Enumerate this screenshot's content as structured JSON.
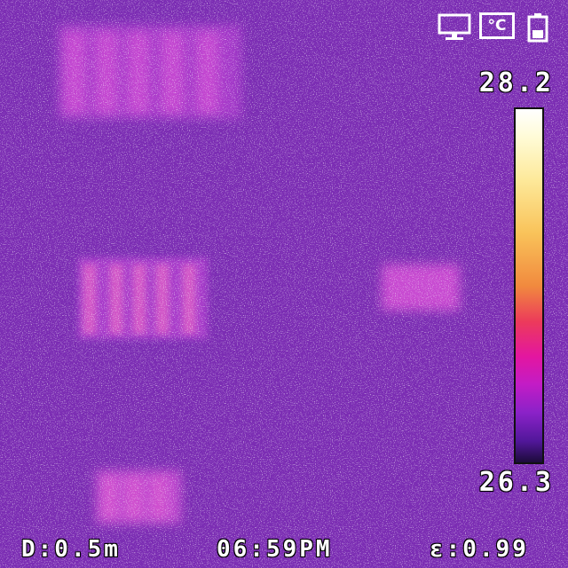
{
  "palette": {
    "background": "#7b2db3",
    "warm_spot": "#d24ad6",
    "colorbar_top": "#ffffff",
    "colorbar_bottom": "#1c0b3a"
  },
  "temperature_scale": {
    "max": "28.2",
    "min": "26.3"
  },
  "footer": {
    "distance": "D:0.5m",
    "time": "06:59PM",
    "emissivity": "ε:0.99"
  },
  "status_icons": [
    "monitor-icon",
    "celsius-unit-icon",
    "battery-icon"
  ],
  "status_labels": {
    "unit": "°C"
  }
}
